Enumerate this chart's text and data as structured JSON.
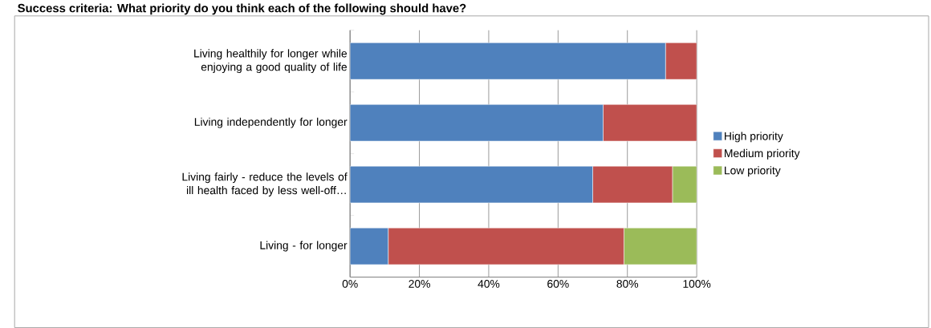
{
  "chart_data": {
    "type": "bar",
    "orientation": "horizontal",
    "stacked": true,
    "title": "Success criteria: What priority do you think each of the following should have?",
    "categories": [
      "Living healthily for longer while enjoying a good quality of life",
      "Living independently for longer",
      "Living fairly - reduce the levels of ill health faced by less well-off…",
      "Living - for longer"
    ],
    "series": [
      {
        "name": "High priority",
        "color": "#4f81bd",
        "values": [
          91,
          73,
          70,
          11
        ]
      },
      {
        "name": "Medium priority",
        "color": "#c0504d",
        "values": [
          9,
          27,
          23,
          68
        ]
      },
      {
        "name": "Low priority",
        "color": "#9bbb59",
        "values": [
          0,
          0,
          7,
          21
        ]
      }
    ],
    "xlim": [
      0,
      100
    ],
    "xticks": [
      {
        "value": 0,
        "label": "0%"
      },
      {
        "value": 20,
        "label": "20%"
      },
      {
        "value": 40,
        "label": "40%"
      },
      {
        "value": 60,
        "label": "60%"
      },
      {
        "value": 80,
        "label": "80%"
      },
      {
        "value": 100,
        "label": "100%"
      }
    ],
    "grid": "x",
    "legend": "right"
  }
}
